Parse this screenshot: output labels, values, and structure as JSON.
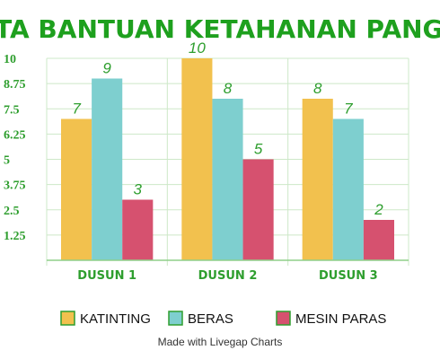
{
  "chart_data": {
    "type": "bar",
    "title": "DATA BANTUAN KETAHANAN PANGAN",
    "categories": [
      "DUSUN 1",
      "DUSUN 2",
      "DUSUN 3"
    ],
    "series": [
      {
        "name": "KATINTING",
        "color": "#f2c14e",
        "values": [
          7,
          10,
          8
        ]
      },
      {
        "name": "BERAS",
        "color": "#7ecfcf",
        "values": [
          9,
          8,
          7
        ]
      },
      {
        "name": "MESIN PARAS",
        "color": "#d6516f",
        "values": [
          3,
          5,
          2
        ]
      }
    ],
    "yticks": [
      "1.25",
      "2.5",
      "3.75",
      "5",
      "6.25",
      "7.5",
      "8.75",
      "10"
    ],
    "ylim": [
      0,
      10
    ],
    "grid": true,
    "legend_position": "bottom",
    "title_color": "#1ea01e",
    "label_color": "#2e9e2e",
    "grid_color": "#cde8c8",
    "axis_color": "#8fcf8a"
  },
  "footer": "Made with Livegap Charts"
}
